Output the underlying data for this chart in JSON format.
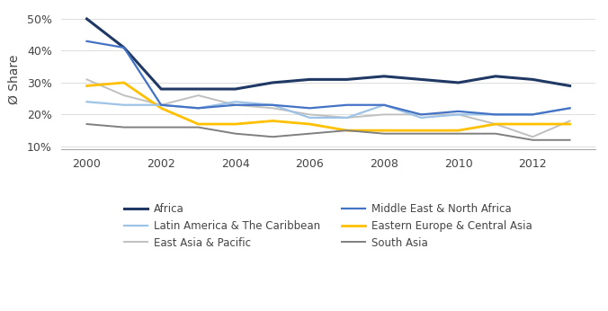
{
  "years": [
    2000,
    2001,
    2002,
    2003,
    2004,
    2005,
    2006,
    2007,
    2008,
    2009,
    2010,
    2011,
    2012,
    2013
  ],
  "series": {
    "Africa": {
      "values": [
        50,
        41,
        28,
        28,
        28,
        30,
        31,
        31,
        32,
        31,
        30,
        32,
        31,
        29
      ],
      "color": "#1F3864",
      "linewidth": 2.2
    },
    "Latin America & The Caribbean": {
      "values": [
        24,
        23,
        23,
        22,
        24,
        23,
        19,
        19,
        23,
        19,
        20,
        20,
        20,
        22
      ],
      "color": "#9DC3E6",
      "linewidth": 1.6
    },
    "East Asia & Pacific": {
      "values": [
        31,
        26,
        23,
        26,
        23,
        22,
        20,
        19,
        20,
        20,
        20,
        17,
        13,
        18
      ],
      "color": "#C0C0C0",
      "linewidth": 1.4
    },
    "Middle East & North Africa": {
      "values": [
        43,
        41,
        23,
        22,
        23,
        23,
        22,
        23,
        23,
        20,
        21,
        20,
        20,
        22
      ],
      "color": "#4472C4",
      "linewidth": 1.6
    },
    "Eastern Europe & Central Asia": {
      "values": [
        29,
        30,
        22,
        17,
        17,
        18,
        17,
        15,
        15,
        15,
        15,
        17,
        17,
        17
      ],
      "color": "#FFC000",
      "linewidth": 2.0
    },
    "South Asia": {
      "values": [
        17,
        16,
        16,
        16,
        14,
        13,
        14,
        15,
        14,
        14,
        14,
        14,
        12,
        12
      ],
      "color": "#7F7F7F",
      "linewidth": 1.4
    }
  },
  "ylabel": "Ø Share",
  "ylim": [
    0.09,
    0.53
  ],
  "yticks": [
    0.1,
    0.2,
    0.3,
    0.4,
    0.5
  ],
  "ytick_labels": [
    "10%",
    "20%",
    "30%",
    "40%",
    "50%"
  ],
  "xticks": [
    2000,
    2002,
    2004,
    2006,
    2008,
    2010,
    2012
  ],
  "xlim": [
    1999.3,
    2013.7
  ],
  "background_color": "#FFFFFF",
  "legend_col1": [
    "Africa",
    "East Asia & Pacific",
    "Eastern Europe & Central Asia"
  ],
  "legend_col2": [
    "Latin America & The Caribbean",
    "Middle East & North Africa",
    "South Asia"
  ],
  "border_color": "#AAAAAA"
}
